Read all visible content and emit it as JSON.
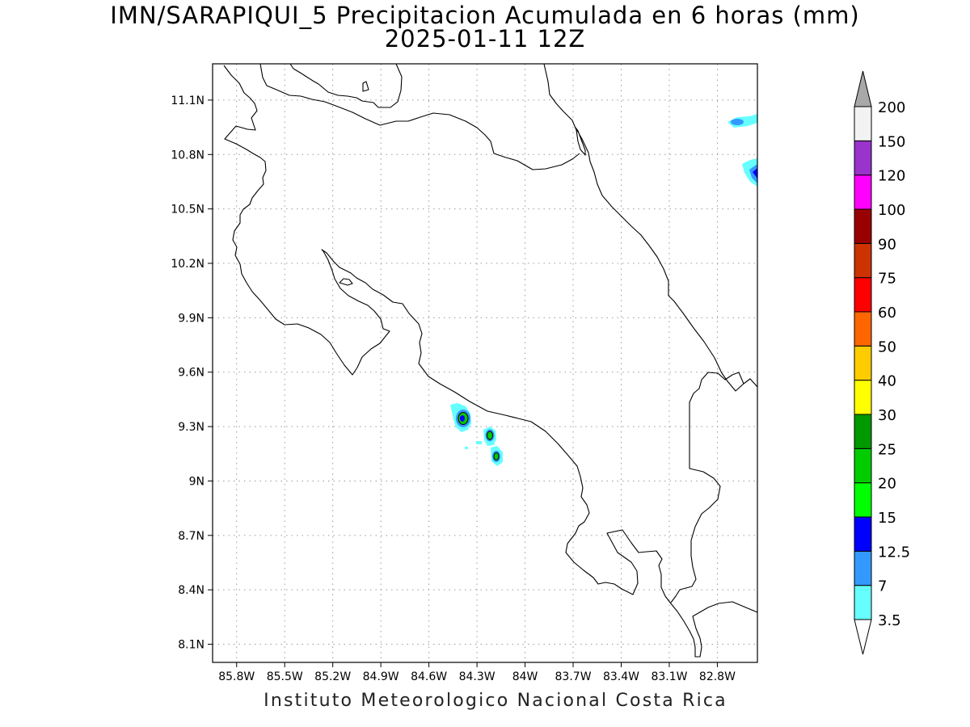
{
  "title_line1": "IMN/SARAPIQUI_5 Precipitacion Acumulada en 6 horas (mm)",
  "title_line2": "2025-01-11 12Z",
  "credit": "Instituto Meteorologico Nacional Costa Rica",
  "map": {
    "lon_range": [
      -85.95,
      -82.55
    ],
    "lat_range": [
      8.0,
      11.3
    ],
    "lon_ticks": [
      {
        "value": -85.8,
        "label": "85.8W"
      },
      {
        "value": -85.5,
        "label": "85.5W"
      },
      {
        "value": -85.2,
        "label": "85.2W"
      },
      {
        "value": -84.9,
        "label": "84.9W"
      },
      {
        "value": -84.6,
        "label": "84.6W"
      },
      {
        "value": -84.3,
        "label": "84.3W"
      },
      {
        "value": -84.0,
        "label": "84W"
      },
      {
        "value": -83.7,
        "label": "83.7W"
      },
      {
        "value": -83.4,
        "label": "83.4W"
      },
      {
        "value": -83.1,
        "label": "83.1W"
      },
      {
        "value": -82.8,
        "label": "82.8W"
      }
    ],
    "lat_ticks": [
      {
        "value": 11.1,
        "label": "11.1N"
      },
      {
        "value": 10.8,
        "label": "10.8N"
      },
      {
        "value": 10.5,
        "label": "10.5N"
      },
      {
        "value": 10.2,
        "label": "10.2N"
      },
      {
        "value": 9.9,
        "label": "9.9N"
      },
      {
        "value": 9.6,
        "label": "9.6N"
      },
      {
        "value": 9.3,
        "label": "9.3N"
      },
      {
        "value": 9.0,
        "label": "9N"
      },
      {
        "value": 8.7,
        "label": "8.7N"
      },
      {
        "value": 8.4,
        "label": "8.4N"
      },
      {
        "value": 8.1,
        "label": "8.1N"
      }
    ],
    "grid": true,
    "precip_cells": [
      {
        "lon": -84.39,
        "lat": 9.34,
        "level": "12.5"
      },
      {
        "lon": -84.23,
        "lat": 9.25,
        "level": "12.5"
      },
      {
        "lon": -84.18,
        "lat": 9.14,
        "level": "12.5"
      },
      {
        "lon": -82.65,
        "lat": 11.0,
        "level": "7"
      },
      {
        "lon": -82.57,
        "lat": 10.71,
        "level": "12.5"
      }
    ]
  },
  "colorbar": {
    "levels": [
      {
        "label": "3.5",
        "color": "#66ffff"
      },
      {
        "label": "7",
        "color": "#3399ff"
      },
      {
        "label": "12.5",
        "color": "#0000ff"
      },
      {
        "label": "15",
        "color": "#00ff00"
      },
      {
        "label": "20",
        "color": "#00cc00"
      },
      {
        "label": "25",
        "color": "#009900"
      },
      {
        "label": "30",
        "color": "#ffff00"
      },
      {
        "label": "40",
        "color": "#ffcc00"
      },
      {
        "label": "50",
        "color": "#ff6600"
      },
      {
        "label": "60",
        "color": "#ff0000"
      },
      {
        "label": "75",
        "color": "#cc3300"
      },
      {
        "label": "90",
        "color": "#990000"
      },
      {
        "label": "100",
        "color": "#ff00ff"
      },
      {
        "label": "120",
        "color": "#9933cc"
      },
      {
        "label": "150",
        "color": "#f2f2f2"
      },
      {
        "label": "200",
        "color": "#a8a8a8"
      }
    ],
    "below_color": "#ffffff",
    "above_color": "#a8a8a8"
  }
}
